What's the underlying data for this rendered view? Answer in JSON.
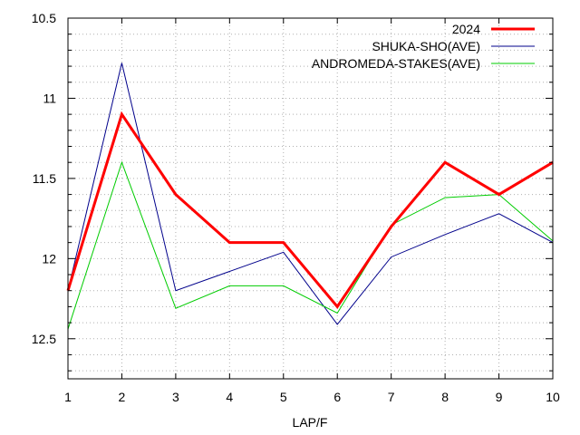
{
  "chart_data": {
    "type": "line",
    "title": "",
    "xlabel": "LAP/F",
    "ylabel": "",
    "x": [
      1,
      2,
      3,
      4,
      5,
      6,
      7,
      8,
      9,
      10
    ],
    "xlim": [
      1,
      10
    ],
    "ylim": [
      10.5,
      12.75
    ],
    "y_inverted": true,
    "yticks": [
      10.5,
      11,
      11.5,
      12,
      12.5
    ],
    "ytick_labels": [
      "10.5",
      "11",
      "11.5",
      "12",
      "12.5"
    ],
    "xtick_labels": [
      "1",
      "2",
      "3",
      "4",
      "5",
      "6",
      "7",
      "8",
      "9",
      "10"
    ],
    "grid": true,
    "legend_position": "top-right",
    "series": [
      {
        "name": "2024",
        "color": "#ff0000",
        "width": 3,
        "values": [
          12.2,
          11.1,
          11.6,
          11.9,
          11.9,
          12.3,
          11.8,
          11.4,
          11.6,
          11.4
        ]
      },
      {
        "name": "SHUKA-SHO(AVE)",
        "color": "#00008b",
        "width": 1,
        "values": [
          12.2,
          10.78,
          12.2,
          12.08,
          11.96,
          12.41,
          11.99,
          11.85,
          11.72,
          11.9
        ]
      },
      {
        "name": "ANDROMEDA-STAKES(AVE)",
        "color": "#00cc00",
        "width": 1,
        "values": [
          12.44,
          11.4,
          12.31,
          12.17,
          12.17,
          12.34,
          11.79,
          11.62,
          11.6,
          11.89
        ]
      }
    ]
  }
}
